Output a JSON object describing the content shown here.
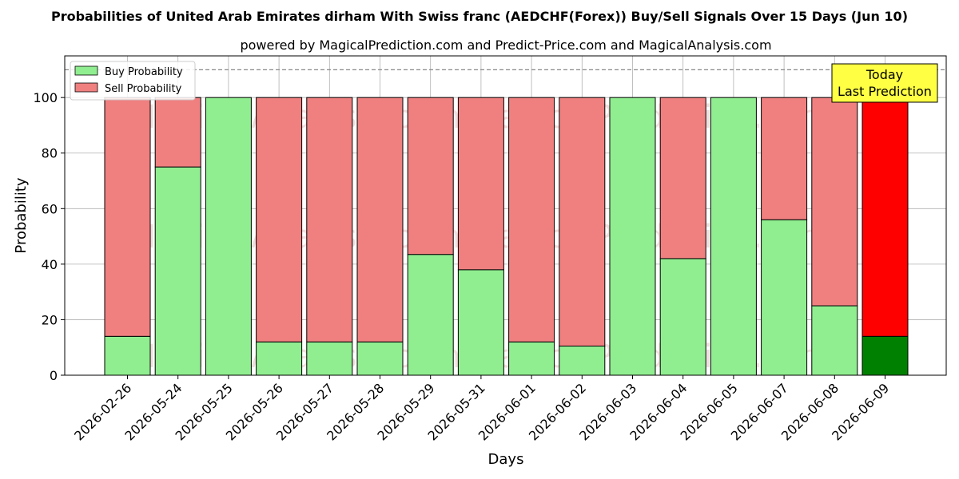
{
  "chart_data": {
    "type": "bar",
    "stacked": true,
    "title": "Probabilities of United Arab Emirates dirham With Swiss franc (AEDCHF(Forex)) Buy/Sell Signals Over 15 Days (Jun 10)",
    "subtitle": "powered by MagicalPrediction.com and Predict-Price.com and MagicalAnalysis.com",
    "xlabel": "Days",
    "ylabel": "Probability",
    "ylim": [
      0,
      115
    ],
    "yticks": [
      0,
      20,
      40,
      60,
      80,
      100
    ],
    "reference_line": 110,
    "grid": true,
    "legend_position": "top-left",
    "categories": [
      "2026-02-26",
      "2026-05-24",
      "2026-05-25",
      "2026-05-26",
      "2026-05-27",
      "2026-05-28",
      "2026-05-29",
      "2026-05-31",
      "2026-06-01",
      "2026-06-02",
      "2026-06-03",
      "2026-06-04",
      "2026-06-05",
      "2026-06-07",
      "2026-06-08",
      "2026-06-09"
    ],
    "series": [
      {
        "name": "Buy Probability",
        "color": "#90ee90",
        "values": [
          14,
          75,
          100,
          12,
          12,
          12,
          43.5,
          38,
          12,
          10.5,
          100,
          42,
          100,
          56,
          25,
          14
        ]
      },
      {
        "name": "Sell Probability",
        "color": "#f08080",
        "values": [
          86,
          25,
          0,
          88,
          88,
          88,
          56.5,
          62,
          88,
          89.5,
          0,
          58,
          0,
          44,
          75,
          86
        ]
      }
    ],
    "highlight": {
      "index": 15,
      "buy_color": "#008000",
      "sell_color": "#ff0000"
    },
    "annotation": {
      "lines": [
        "Today",
        "Last Prediction"
      ],
      "background": "#ffff44"
    },
    "watermark": "MagicalAnalysis.com     MagicalPrediction.com"
  }
}
